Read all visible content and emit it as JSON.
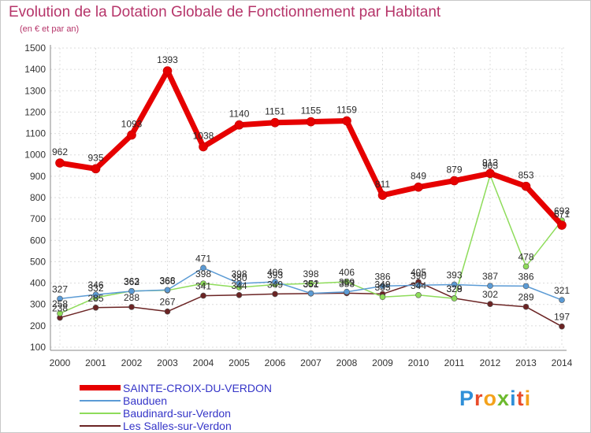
{
  "title": "Evolution de la Dotation Globale de Fonctionnement par Habitant",
  "subtitle": "(en € et par an)",
  "logo": [
    "P",
    "r",
    "o",
    "x",
    "i",
    "t",
    "i"
  ],
  "logo_colors": [
    "#2f8fd8",
    "#e94b2a",
    "#f4a21b",
    "#6dba2e",
    "#2f8fd8",
    "#e94b2a",
    "#f4a21b"
  ],
  "chart_data": {
    "type": "line",
    "title": "Evolution de la Dotation Globale de Fonctionnement par Habitant",
    "ylabel": "(en € et par an)",
    "xlabel": "",
    "x": [
      "2000",
      "2001",
      "2002",
      "2003",
      "2004",
      "2005",
      "2006",
      "2007",
      "2008",
      "2009",
      "2010",
      "2011",
      "2012",
      "2013",
      "2014"
    ],
    "ylim": [
      100,
      1500
    ],
    "yticks": [
      100,
      200,
      300,
      400,
      500,
      600,
      700,
      800,
      900,
      1000,
      1100,
      1200,
      1300,
      1400,
      1500
    ],
    "grid": true,
    "legend": "bottom-left",
    "series": [
      {
        "name": "SAINTE-CROIX-DU-VERDON",
        "color": "#e60000",
        "values": [
          962,
          935,
          1093,
          1393,
          1038,
          1140,
          1151,
          1155,
          1159,
          811,
          849,
          879,
          913,
          853,
          671
        ],
        "labels": [
          "962",
          "935",
          "1093",
          "1393",
          "1038",
          "1140",
          "1151",
          "1155",
          "1159",
          "811",
          "849",
          "879",
          "913",
          "853",
          "671"
        ]
      },
      {
        "name": "Bauduen",
        "color": "#5b9bd5",
        "values": [
          327,
          346,
          362,
          368,
          471,
          398,
          406,
          352,
          359,
          386,
          390,
          393,
          387,
          386,
          321
        ],
        "labels": [
          "327",
          "346",
          "362",
          "368",
          "471",
          "398",
          "406",
          "352",
          "359",
          "386",
          "390",
          "393",
          "387",
          "386",
          "321"
        ]
      },
      {
        "name": "Baudinard-sur-Verdon",
        "color": "#8edc5a",
        "values": [
          258,
          332,
          363,
          366,
          398,
          380,
          393,
          398,
          406,
          335,
          344,
          328,
          905,
          478,
          693
        ],
        "labels": [
          "258",
          "332",
          "363",
          "366",
          "398",
          "380",
          "393",
          "398",
          "406",
          "335",
          "344",
          "328",
          "905",
          "478",
          "693"
        ]
      },
      {
        "name": "Les Salles-sur-Verdon",
        "color": "#6b2424",
        "values": [
          238,
          285,
          288,
          267,
          341,
          344,
          349,
          351,
          353,
          349,
          405,
          329,
          302,
          289,
          197
        ],
        "labels": [
          "238",
          "285",
          "288",
          "267",
          "341",
          "344",
          "349",
          "351",
          "353",
          "349",
          "405",
          "329",
          "302",
          "289",
          "197"
        ]
      }
    ]
  }
}
